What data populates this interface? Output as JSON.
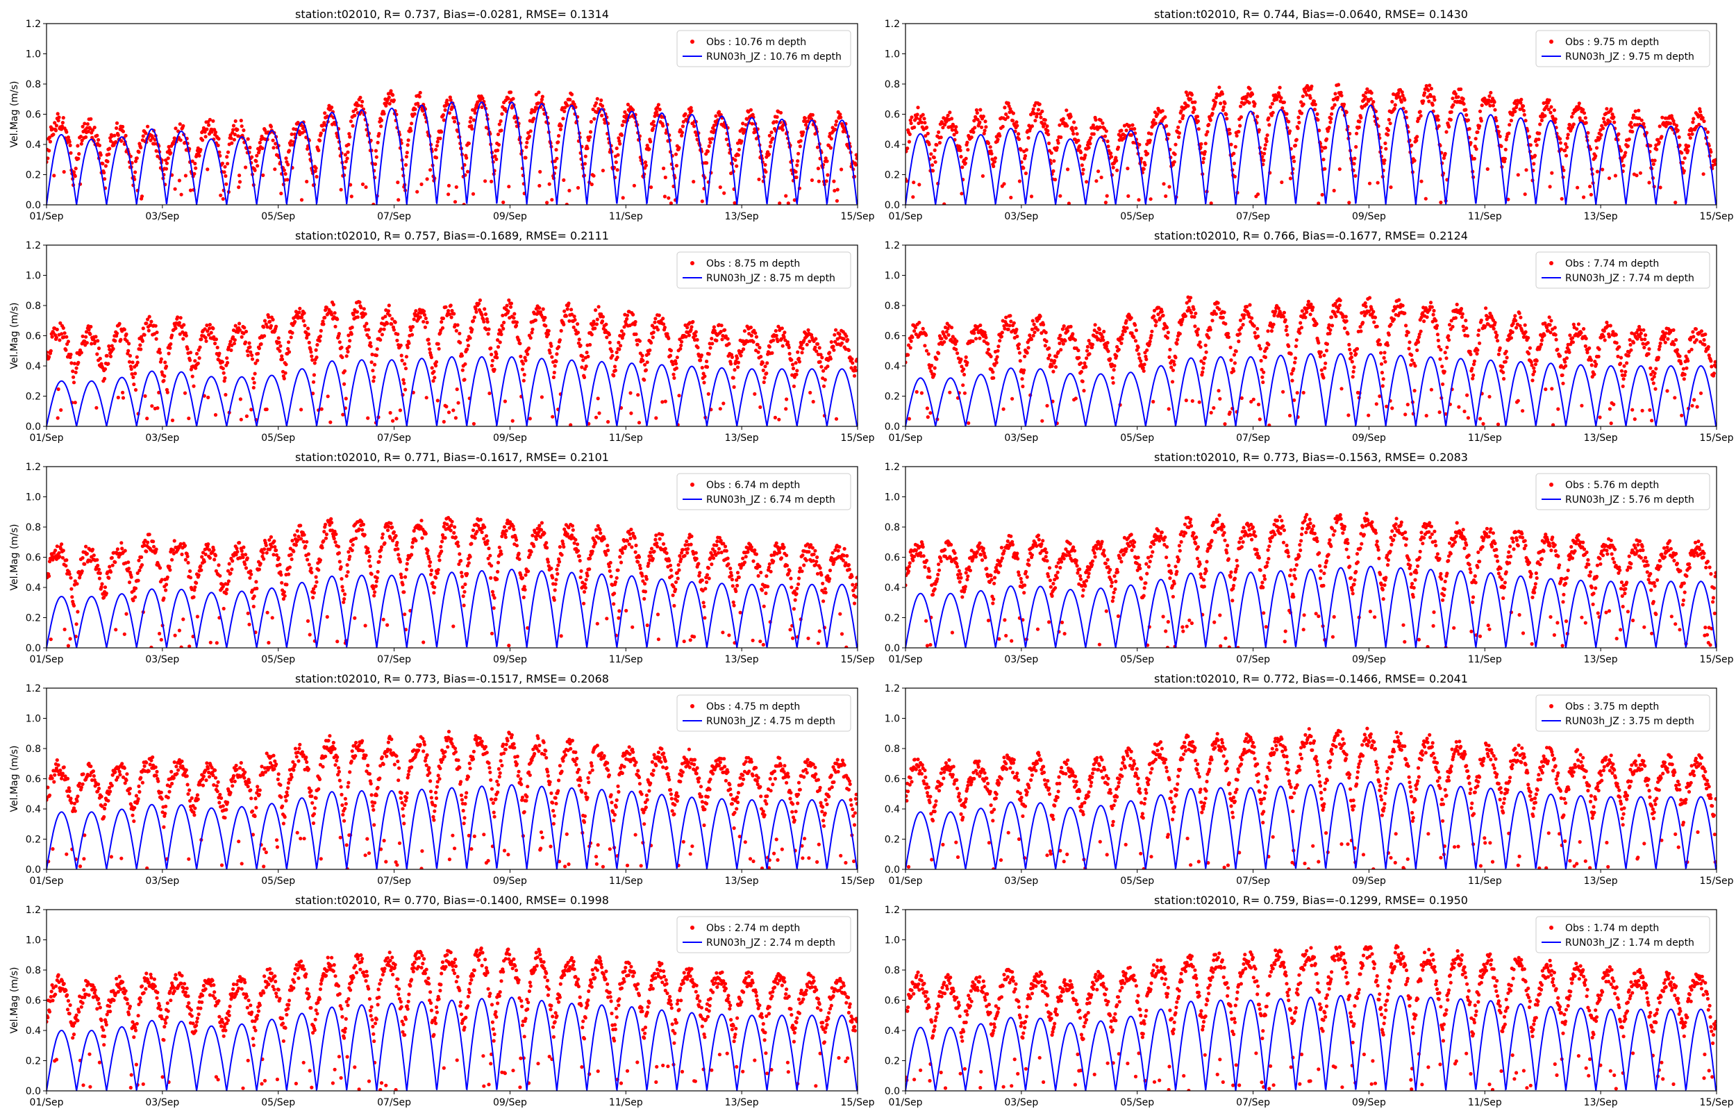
{
  "figure": {
    "obs_color": "#ff0000",
    "model_color": "#0000ff",
    "axis_color": "#000000"
  },
  "chart_data": [
    {
      "type": "line",
      "title": "station:t02010, R= 0.737, Bias=-0.0281, RMSE= 0.1314",
      "xlabel": "",
      "ylabel": "Vel.Mag (m/s)",
      "x_ticks": [
        "01/Sep",
        "03/Sep",
        "05/Sep",
        "07/Sep",
        "09/Sep",
        "11/Sep",
        "13/Sep",
        "15/Sep"
      ],
      "y_ticks": [
        "0.0",
        "0.2",
        "0.4",
        "0.6",
        "0.8",
        "1.0",
        "1.2"
      ],
      "xlim": [
        "01/Sep",
        "15/Sep"
      ],
      "ylim": [
        0,
        1.2
      ],
      "grid": false,
      "legend_position": "upper right",
      "series": [
        {
          "name": "Obs : 10.76 m depth",
          "kind": "scatter",
          "color": "#ff0000",
          "daily_peak": [
            0.58,
            0.5,
            0.46,
            0.54,
            0.46,
            0.62,
            0.72,
            0.66,
            0.7,
            0.7,
            0.62,
            0.6,
            0.58,
            0.56
          ],
          "lows": 0.15
        },
        {
          "name": "RUN03h_JZ : 10.76 m depth",
          "kind": "line",
          "color": "#0000ff",
          "daily_peak": [
            0.48,
            0.42,
            0.52,
            0.42,
            0.5,
            0.62,
            0.64,
            0.68,
            0.68,
            0.66,
            0.62,
            0.6,
            0.58,
            0.56
          ]
        }
      ]
    },
    {
      "type": "line",
      "title": "station:t02010, R= 0.744, Bias=-0.0640, RMSE= 0.1430",
      "xlabel": "",
      "ylabel": "",
      "x_ticks": [
        "01/Sep",
        "03/Sep",
        "05/Sep",
        "07/Sep",
        "09/Sep",
        "11/Sep",
        "13/Sep",
        "15/Sep"
      ],
      "y_ticks": [
        "0.0",
        "0.2",
        "0.4",
        "0.6",
        "0.8",
        "1.0",
        "1.2"
      ],
      "xlim": [
        "01/Sep",
        "15/Sep"
      ],
      "ylim": [
        0,
        1.2
      ],
      "grid": false,
      "legend_position": "upper right",
      "series": [
        {
          "name": "Obs : 9.75 m depth",
          "kind": "scatter",
          "color": "#ff0000",
          "daily_peak": [
            0.6,
            0.55,
            0.66,
            0.55,
            0.5,
            0.74,
            0.72,
            0.76,
            0.72,
            0.74,
            0.72,
            0.66,
            0.6,
            0.58
          ],
          "lows": 0.2
        },
        {
          "name": "RUN03h_JZ : 9.75 m depth",
          "kind": "line",
          "color": "#0000ff",
          "daily_peak": [
            0.48,
            0.44,
            0.52,
            0.42,
            0.5,
            0.6,
            0.62,
            0.64,
            0.66,
            0.62,
            0.6,
            0.56,
            0.54,
            0.52
          ]
        }
      ]
    },
    {
      "type": "line",
      "title": "station:t02010, R= 0.757, Bias=-0.1689, RMSE= 0.2111",
      "xlabel": "",
      "ylabel": "Vel.Mag (m/s)",
      "x_ticks": [
        "01/Sep",
        "03/Sep",
        "05/Sep",
        "07/Sep",
        "09/Sep",
        "11/Sep",
        "13/Sep",
        "15/Sep"
      ],
      "y_ticks": [
        "0.0",
        "0.2",
        "0.4",
        "0.6",
        "0.8",
        "1.0",
        "1.2"
      ],
      "xlim": [
        "01/Sep",
        "15/Sep"
      ],
      "ylim": [
        0,
        1.2
      ],
      "grid": false,
      "legend_position": "upper right",
      "series": [
        {
          "name": "Obs : 8.75 m depth",
          "kind": "scatter",
          "color": "#ff0000",
          "daily_peak": [
            0.64,
            0.6,
            0.7,
            0.6,
            0.7,
            0.8,
            0.74,
            0.78,
            0.78,
            0.76,
            0.72,
            0.66,
            0.62,
            0.6
          ],
          "lows": 0.3
        },
        {
          "name": "RUN03h_JZ : 8.75 m depth",
          "kind": "line",
          "color": "#0000ff",
          "daily_peak": [
            0.3,
            0.3,
            0.38,
            0.32,
            0.34,
            0.44,
            0.44,
            0.46,
            0.46,
            0.44,
            0.42,
            0.4,
            0.38,
            0.38
          ]
        }
      ]
    },
    {
      "type": "line",
      "title": "station:t02010, R= 0.766, Bias=-0.1677, RMSE= 0.2124",
      "xlabel": "",
      "ylabel": "",
      "x_ticks": [
        "01/Sep",
        "03/Sep",
        "05/Sep",
        "07/Sep",
        "09/Sep",
        "11/Sep",
        "13/Sep",
        "15/Sep"
      ],
      "y_ticks": [
        "0.0",
        "0.2",
        "0.4",
        "0.6",
        "0.8",
        "1.0",
        "1.2"
      ],
      "xlim": [
        "01/Sep",
        "15/Sep"
      ],
      "ylim": [
        0,
        1.2
      ],
      "grid": false,
      "legend_position": "upper right",
      "series": [
        {
          "name": "Obs : 7.74 m depth",
          "kind": "scatter",
          "color": "#ff0000",
          "daily_peak": [
            0.66,
            0.62,
            0.72,
            0.6,
            0.7,
            0.82,
            0.76,
            0.8,
            0.8,
            0.78,
            0.74,
            0.68,
            0.64,
            0.62
          ],
          "lows": 0.3
        },
        {
          "name": "RUN03h_JZ : 7.74 m depth",
          "kind": "line",
          "color": "#0000ff",
          "daily_peak": [
            0.32,
            0.32,
            0.4,
            0.34,
            0.36,
            0.46,
            0.46,
            0.48,
            0.48,
            0.46,
            0.44,
            0.42,
            0.4,
            0.4
          ]
        }
      ]
    },
    {
      "type": "line",
      "title": "station:t02010, R= 0.771, Bias=-0.1617, RMSE= 0.2101",
      "xlabel": "",
      "ylabel": "Vel.Mag (m/s)",
      "x_ticks": [
        "01/Sep",
        "03/Sep",
        "05/Sep",
        "07/Sep",
        "09/Sep",
        "11/Sep",
        "13/Sep",
        "15/Sep"
      ],
      "y_ticks": [
        "0.0",
        "0.2",
        "0.4",
        "0.6",
        "0.8",
        "1.0",
        "1.2"
      ],
      "xlim": [
        "01/Sep",
        "15/Sep"
      ],
      "ylim": [
        0,
        1.2
      ],
      "grid": false,
      "legend_position": "upper right",
      "series": [
        {
          "name": "Obs : 6.74 m depth",
          "kind": "scatter",
          "color": "#ff0000",
          "daily_peak": [
            0.66,
            0.62,
            0.72,
            0.62,
            0.72,
            0.82,
            0.78,
            0.82,
            0.8,
            0.78,
            0.74,
            0.7,
            0.66,
            0.64
          ],
          "lows": 0.3
        },
        {
          "name": "RUN03h_JZ : 6.74 m depth",
          "kind": "line",
          "color": "#0000ff",
          "daily_peak": [
            0.34,
            0.34,
            0.4,
            0.36,
            0.4,
            0.48,
            0.48,
            0.5,
            0.52,
            0.5,
            0.48,
            0.44,
            0.42,
            0.42
          ]
        }
      ]
    },
    {
      "type": "line",
      "title": "station:t02010, R= 0.773, Bias=-0.1563, RMSE= 0.2083",
      "xlabel": "",
      "ylabel": "",
      "x_ticks": [
        "01/Sep",
        "03/Sep",
        "05/Sep",
        "07/Sep",
        "09/Sep",
        "11/Sep",
        "13/Sep",
        "15/Sep"
      ],
      "y_ticks": [
        "0.0",
        "0.2",
        "0.4",
        "0.6",
        "0.8",
        "1.0",
        "1.2"
      ],
      "xlim": [
        "01/Sep",
        "15/Sep"
      ],
      "ylim": [
        0,
        1.2
      ],
      "grid": false,
      "legend_position": "upper right",
      "series": [
        {
          "name": "Obs : 5.76 m depth",
          "kind": "scatter",
          "color": "#ff0000",
          "daily_peak": [
            0.68,
            0.64,
            0.72,
            0.64,
            0.72,
            0.84,
            0.8,
            0.84,
            0.84,
            0.8,
            0.76,
            0.72,
            0.68,
            0.66
          ],
          "lows": 0.32
        },
        {
          "name": "RUN03h_JZ : 5.76 m depth",
          "kind": "line",
          "color": "#0000ff",
          "daily_peak": [
            0.36,
            0.36,
            0.42,
            0.38,
            0.42,
            0.5,
            0.5,
            0.52,
            0.54,
            0.52,
            0.5,
            0.46,
            0.44,
            0.44
          ]
        }
      ]
    },
    {
      "type": "line",
      "title": "station:t02010, R= 0.773, Bias=-0.1517, RMSE= 0.2068",
      "xlabel": "",
      "ylabel": "Vel.Mag (m/s)",
      "x_ticks": [
        "01/Sep",
        "03/Sep",
        "05/Sep",
        "07/Sep",
        "09/Sep",
        "11/Sep",
        "13/Sep",
        "15/Sep"
      ],
      "y_ticks": [
        "0.0",
        "0.2",
        "0.4",
        "0.6",
        "0.8",
        "1.0",
        "1.2"
      ],
      "xlim": [
        "01/Sep",
        "15/Sep"
      ],
      "ylim": [
        0,
        1.2
      ],
      "grid": false,
      "legend_position": "upper right",
      "series": [
        {
          "name": "Obs : 4.75 m depth",
          "kind": "scatter",
          "color": "#ff0000",
          "daily_peak": [
            0.68,
            0.64,
            0.72,
            0.64,
            0.74,
            0.84,
            0.82,
            0.86,
            0.86,
            0.82,
            0.78,
            0.74,
            0.7,
            0.68
          ],
          "lows": 0.32
        },
        {
          "name": "RUN03h_JZ : 4.75 m depth",
          "kind": "line",
          "color": "#0000ff",
          "daily_peak": [
            0.38,
            0.38,
            0.44,
            0.4,
            0.44,
            0.52,
            0.52,
            0.54,
            0.56,
            0.54,
            0.52,
            0.48,
            0.46,
            0.46
          ]
        }
      ]
    },
    {
      "type": "line",
      "title": "station:t02010, R= 0.772, Bias=-0.1466, RMSE= 0.2041",
      "xlabel": "",
      "ylabel": "",
      "x_ticks": [
        "01/Sep",
        "03/Sep",
        "05/Sep",
        "07/Sep",
        "09/Sep",
        "11/Sep",
        "13/Sep",
        "15/Sep"
      ],
      "y_ticks": [
        "0.0",
        "0.2",
        "0.4",
        "0.6",
        "0.8",
        "1.0",
        "1.2"
      ],
      "xlim": [
        "01/Sep",
        "15/Sep"
      ],
      "ylim": [
        0,
        1.2
      ],
      "grid": false,
      "legend_position": "upper right",
      "series": [
        {
          "name": "Obs : 3.75 m depth",
          "kind": "scatter",
          "color": "#ff0000",
          "daily_peak": [
            0.7,
            0.66,
            0.74,
            0.66,
            0.76,
            0.86,
            0.84,
            0.88,
            0.88,
            0.84,
            0.8,
            0.76,
            0.72,
            0.7
          ],
          "lows": 0.33
        },
        {
          "name": "RUN03h_JZ : 3.75 m depth",
          "kind": "line",
          "color": "#0000ff",
          "daily_peak": [
            0.38,
            0.38,
            0.46,
            0.4,
            0.46,
            0.54,
            0.54,
            0.56,
            0.58,
            0.56,
            0.54,
            0.5,
            0.48,
            0.48
          ]
        }
      ]
    },
    {
      "type": "line",
      "title": "station:t02010, R= 0.770, Bias=-0.1400, RMSE= 0.1998",
      "xlabel": "",
      "ylabel": "Vel.Mag (m/s)",
      "x_ticks": [
        "01/Sep",
        "03/Sep",
        "05/Sep",
        "07/Sep",
        "09/Sep",
        "11/Sep",
        "13/Sep",
        "15/Sep"
      ],
      "y_ticks": [
        "0.0",
        "0.2",
        "0.4",
        "0.6",
        "0.8",
        "1.0",
        "1.2"
      ],
      "xlim": [
        "01/Sep",
        "15/Sep"
      ],
      "ylim": [
        0,
        1.2
      ],
      "grid": false,
      "legend_position": "upper right",
      "series": [
        {
          "name": "Obs : 2.74 m depth",
          "kind": "scatter",
          "color": "#ff0000",
          "daily_peak": [
            0.72,
            0.68,
            0.76,
            0.68,
            0.78,
            0.86,
            0.86,
            0.9,
            0.9,
            0.86,
            0.82,
            0.78,
            0.74,
            0.72
          ],
          "lows": 0.34
        },
        {
          "name": "RUN03h_JZ : 2.74 m depth",
          "kind": "line",
          "color": "#0000ff",
          "daily_peak": [
            0.4,
            0.4,
            0.48,
            0.42,
            0.48,
            0.56,
            0.58,
            0.6,
            0.62,
            0.58,
            0.56,
            0.52,
            0.5,
            0.5
          ]
        }
      ]
    },
    {
      "type": "line",
      "title": "station:t02010, R= 0.759, Bias=-0.1299, RMSE= 0.1950",
      "xlabel": "",
      "ylabel": "",
      "x_ticks": [
        "01/Sep",
        "03/Sep",
        "05/Sep",
        "07/Sep",
        "09/Sep",
        "11/Sep",
        "13/Sep",
        "15/Sep"
      ],
      "y_ticks": [
        "0.0",
        "0.2",
        "0.4",
        "0.6",
        "0.8",
        "1.0",
        "1.2"
      ],
      "xlim": [
        "01/Sep",
        "15/Sep"
      ],
      "ylim": [
        0,
        1.2
      ],
      "grid": false,
      "legend_position": "upper right",
      "series": [
        {
          "name": "Obs : 1.74 m depth",
          "kind": "scatter",
          "color": "#ff0000",
          "daily_peak": [
            0.74,
            0.7,
            0.78,
            0.7,
            0.8,
            0.88,
            0.88,
            0.92,
            0.92,
            0.9,
            0.86,
            0.82,
            0.78,
            0.74
          ],
          "lows": 0.34
        },
        {
          "name": "RUN03h_JZ : 1.74 m depth",
          "kind": "line",
          "color": "#0000ff",
          "daily_peak": [
            0.42,
            0.42,
            0.5,
            0.44,
            0.5,
            0.6,
            0.6,
            0.62,
            0.64,
            0.62,
            0.6,
            0.56,
            0.54,
            0.54
          ]
        }
      ]
    }
  ]
}
